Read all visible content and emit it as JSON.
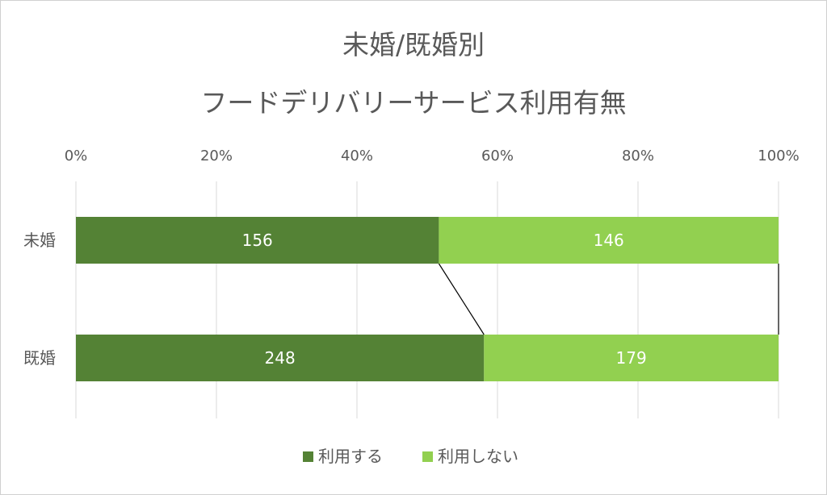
{
  "chart_data": {
    "type": "bar",
    "orientation": "horizontal",
    "stacking": "percent",
    "title_lines": [
      "未婚/既婚別",
      "フードデリバリーサービス利用有無"
    ],
    "categories": [
      "未婚",
      "既婚"
    ],
    "series": [
      {
        "name": "利用する",
        "values": [
          156,
          248
        ],
        "color": "#548235"
      },
      {
        "name": "利用しない",
        "values": [
          146,
          179
        ],
        "color": "#92d050"
      }
    ],
    "x_ticks": [
      "0%",
      "20%",
      "40%",
      "60%",
      "80%",
      "100%"
    ],
    "xlim": [
      0,
      100
    ],
    "grid": true,
    "series_lines": true,
    "legend_position": "bottom"
  }
}
